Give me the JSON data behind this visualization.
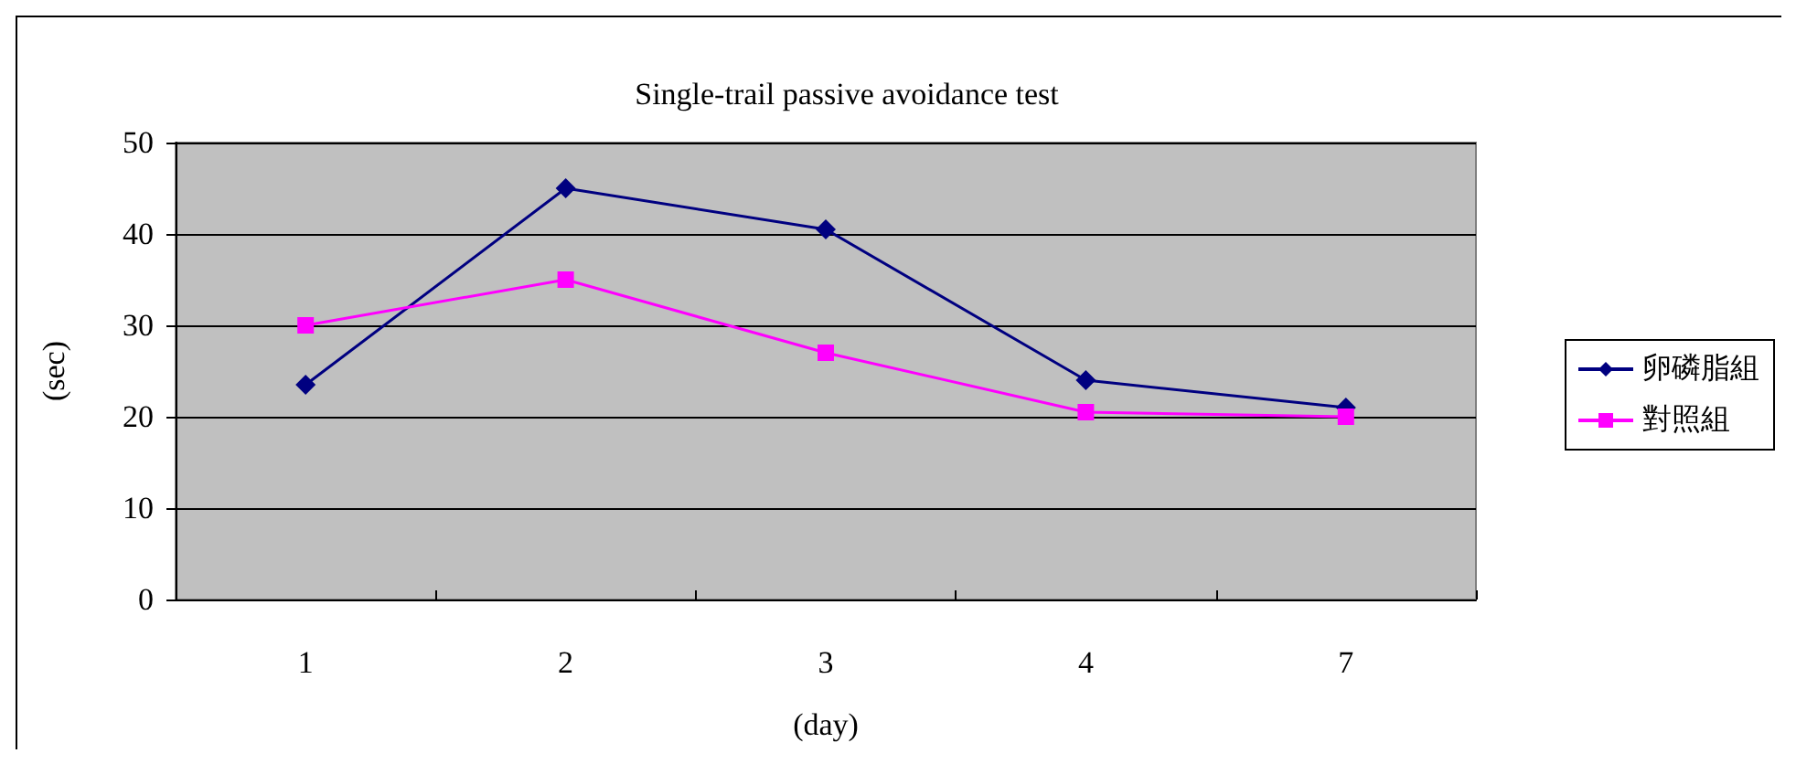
{
  "chart_data": {
    "type": "line",
    "title": "Single-trail passive avoidance test",
    "xlabel": "(day)",
    "ylabel": "(sec)",
    "categories": [
      "1",
      "2",
      "3",
      "4",
      "7"
    ],
    "series": [
      {
        "name": "卵磷脂組",
        "color": "#000080",
        "values": [
          23.5,
          45,
          40.5,
          24,
          21
        ],
        "marker": "diamond"
      },
      {
        "name": "對照組",
        "color": "#ff00ff",
        "values": [
          30,
          35,
          27,
          20.5,
          20
        ],
        "marker": "square"
      }
    ],
    "ylim": [
      0,
      50
    ],
    "yticks": [
      0,
      10,
      20,
      30,
      40,
      50
    ],
    "grid": "y",
    "legend": "right"
  }
}
